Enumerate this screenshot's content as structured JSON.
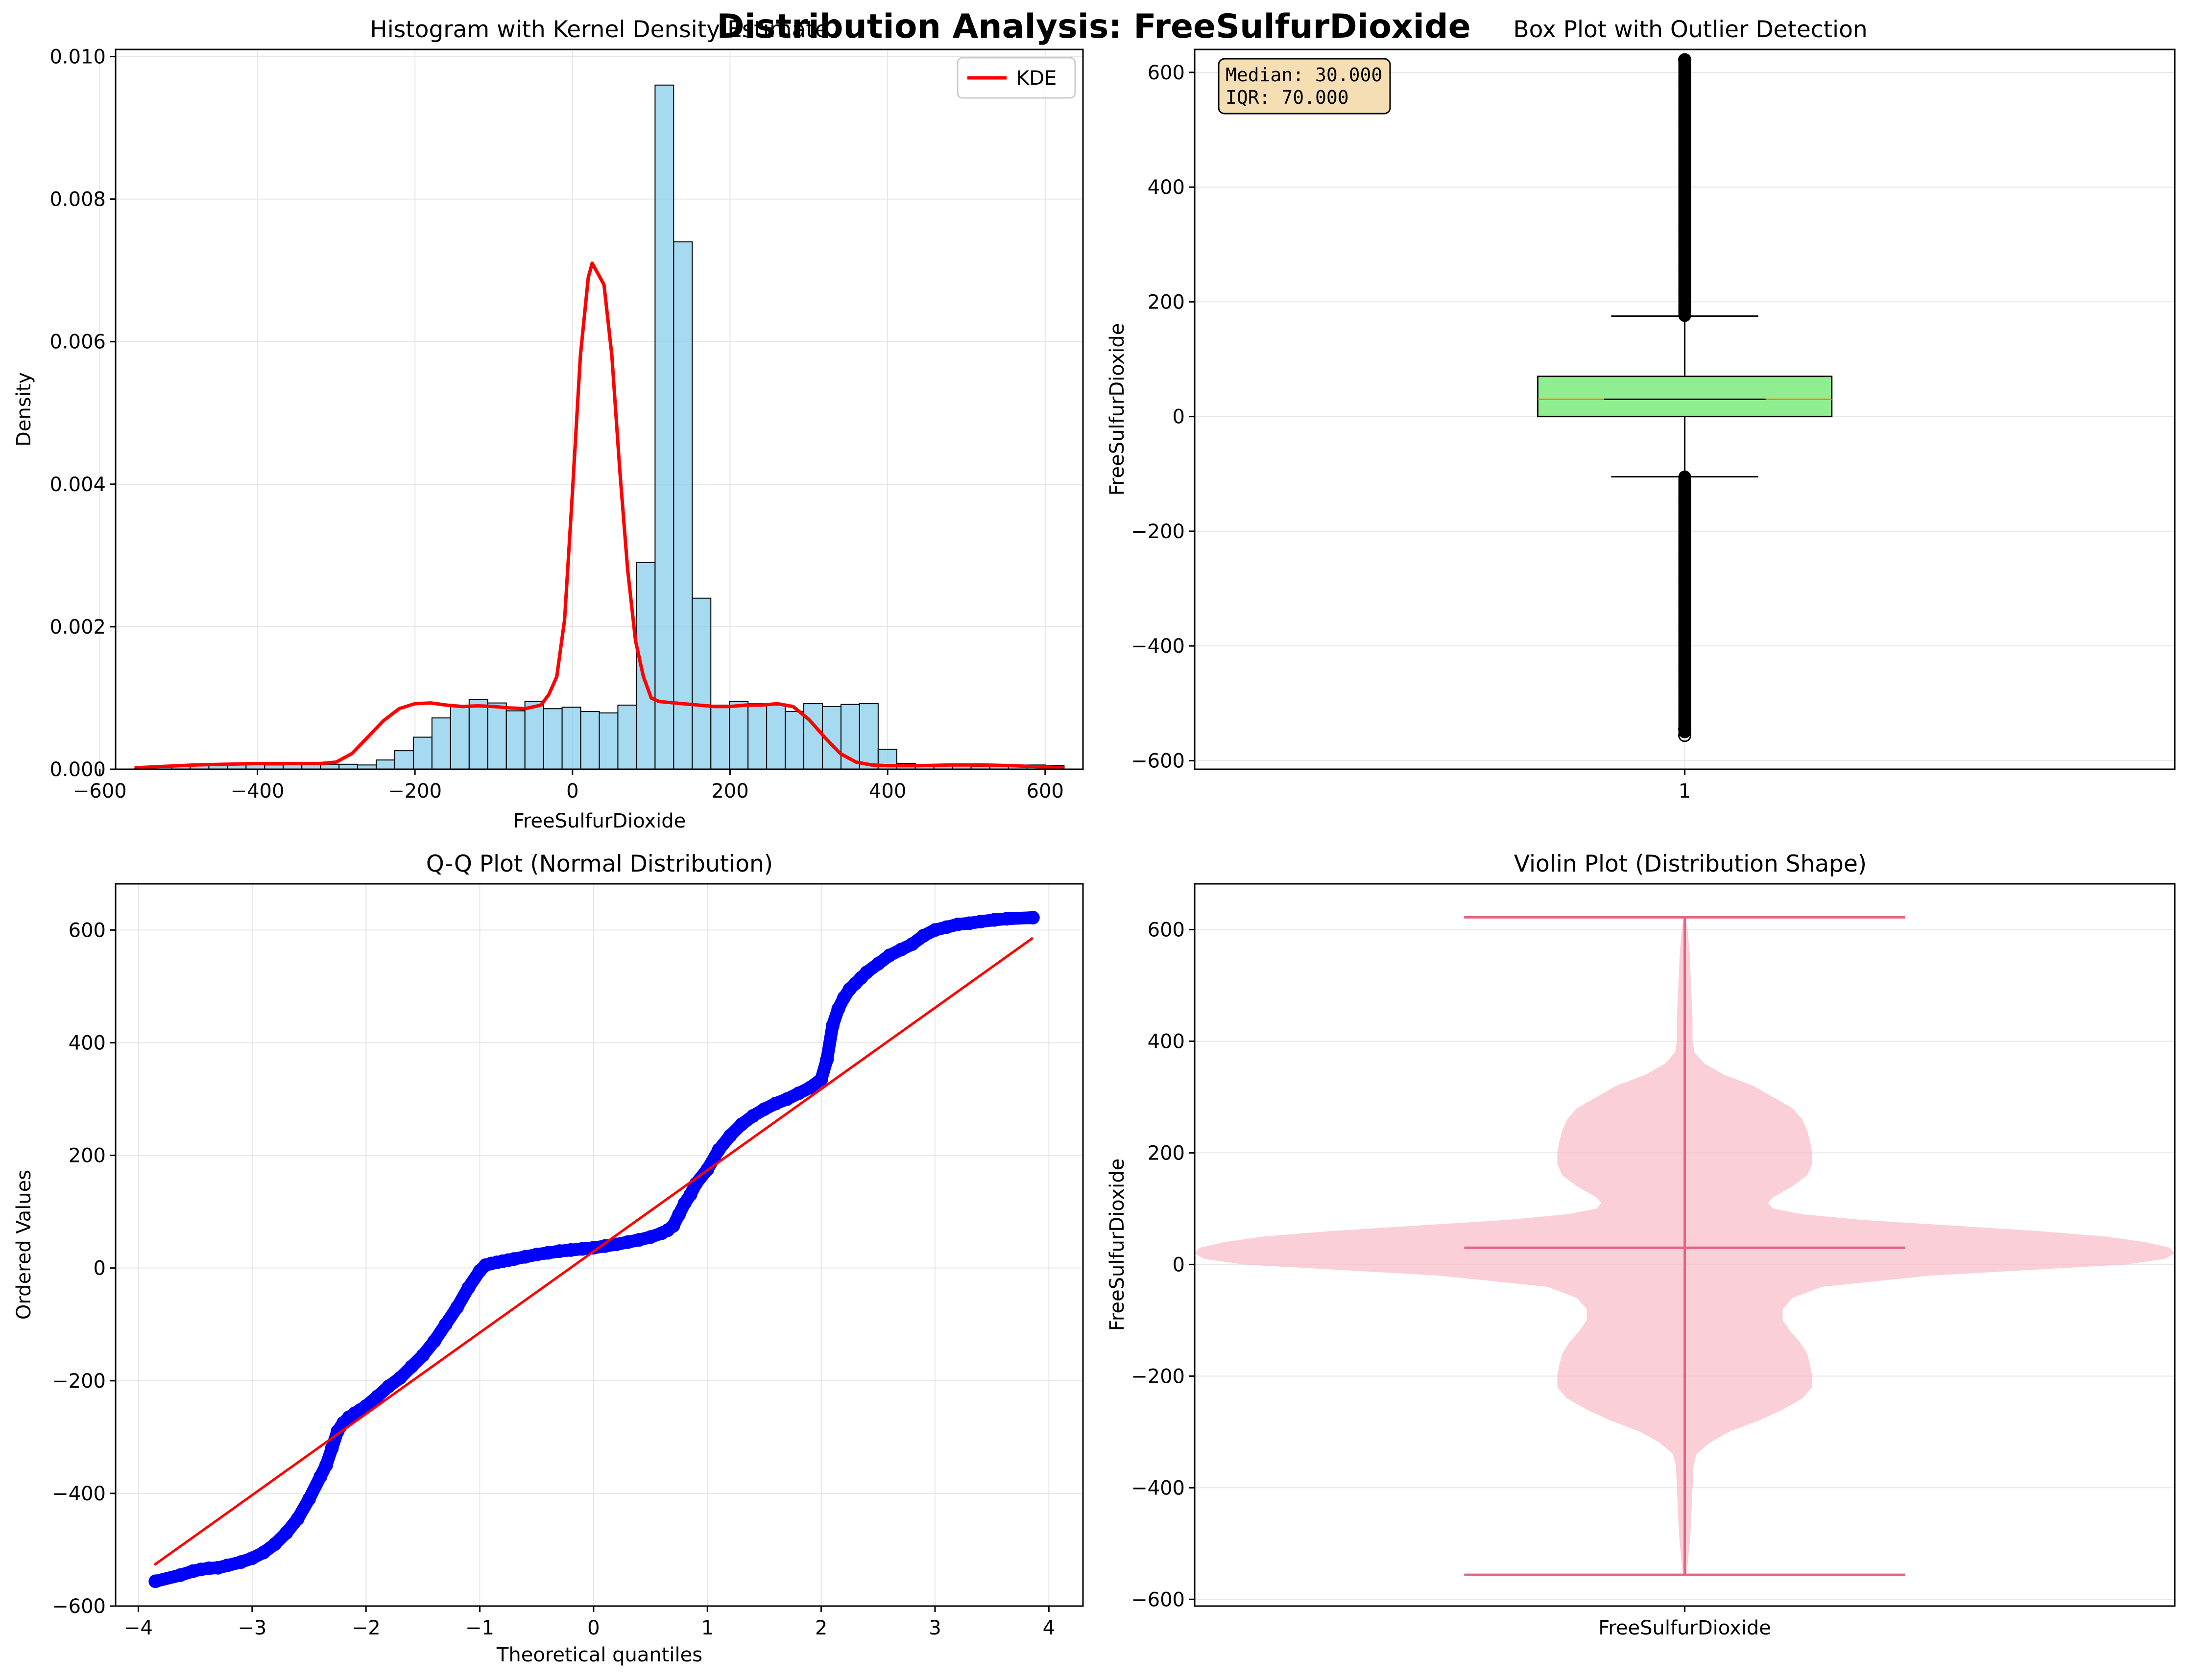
{
  "figure": {
    "title": "Distribution Analysis: FreeSulfurDioxide",
    "bg_color": "#ffffff",
    "grid_color": "#e6e6e6"
  },
  "chart_data": [
    {
      "id": "hist",
      "type": "bar",
      "title": "Histogram with Kernel Density Estimate",
      "xlabel": "FreeSulfurDioxide",
      "ylabel": "Density",
      "xlim": [
        -580,
        648
      ],
      "ylim": [
        0,
        0.0101
      ],
      "xticks": [
        -600,
        -400,
        -200,
        0,
        200,
        400,
        600
      ],
      "xtick_labels": [
        "−600",
        "−400",
        "−200",
        "0",
        "200",
        "400",
        "600"
      ],
      "yticks": [
        0,
        0.002,
        0.004,
        0.006,
        0.008,
        0.01
      ],
      "ytick_labels": [
        "0.000",
        "0.002",
        "0.004",
        "0.006",
        "0.008",
        "0.010"
      ],
      "grid": true,
      "bar_color": "#87ceeb",
      "bar_edge": "#000000",
      "bins": {
        "start": -556,
        "width": 23.6,
        "densities": [
          1e-05,
          3e-05,
          4e-05,
          5e-05,
          6e-05,
          6e-05,
          7e-05,
          6e-05,
          9e-05,
          8e-05,
          7e-05,
          7e-05,
          6e-05,
          0.00013,
          0.00026,
          0.00045,
          0.00072,
          0.00088,
          0.00098,
          0.00093,
          0.00082,
          0.00095,
          0.00085,
          0.00087,
          0.00081,
          0.00079,
          0.0009,
          0.0029,
          0.0096,
          0.0074,
          0.0024,
          0.0009,
          0.00095,
          0.00092,
          0.0009,
          0.00081,
          0.00092,
          0.00088,
          0.00091,
          0.00092,
          0.00028,
          8e-05,
          6e-05,
          5e-05,
          5e-05,
          4e-05,
          4e-05,
          5e-05,
          6e-05,
          5e-05
        ]
      },
      "kde": {
        "name": "KDE",
        "color": "#ff0000",
        "x": [
          -556,
          -520,
          -480,
          -440,
          -400,
          -360,
          -320,
          -300,
          -280,
          -260,
          -240,
          -220,
          -200,
          -180,
          -160,
          -140,
          -120,
          -100,
          -80,
          -60,
          -40,
          -30,
          -20,
          -10,
          0,
          10,
          20,
          25,
          30,
          40,
          50,
          60,
          70,
          80,
          90,
          100,
          110,
          120,
          140,
          160,
          180,
          200,
          220,
          240,
          260,
          280,
          300,
          320,
          340,
          360,
          380,
          400,
          440,
          480,
          520,
          560,
          600,
          624
        ],
        "y": [
          2e-05,
          4e-05,
          6e-05,
          7e-05,
          8e-05,
          8e-05,
          8e-05,
          0.0001,
          0.00022,
          0.00045,
          0.00068,
          0.00085,
          0.00092,
          0.00093,
          0.0009,
          0.00088,
          0.00089,
          0.00088,
          0.00086,
          0.00085,
          0.0009,
          0.00105,
          0.0013,
          0.0021,
          0.0039,
          0.0058,
          0.0069,
          0.0071,
          0.007,
          0.0068,
          0.0058,
          0.0042,
          0.0028,
          0.0018,
          0.0013,
          0.001,
          0.00095,
          0.00094,
          0.00092,
          0.0009,
          0.00088,
          0.00088,
          0.0009,
          0.0009,
          0.00092,
          0.00088,
          0.0007,
          0.00045,
          0.00022,
          0.0001,
          6e-05,
          5e-05,
          5e-05,
          6e-05,
          6e-05,
          5e-05,
          3e-05,
          2e-05
        ]
      },
      "legend": {
        "position": "upper-right",
        "label": "KDE"
      }
    },
    {
      "id": "box",
      "type": "box",
      "title": "Box Plot with Outlier Detection",
      "ylabel": "FreeSulfurDioxide",
      "xlim": [
        0.5,
        1.5
      ],
      "ylim": [
        -615,
        640
      ],
      "yticks": [
        -600,
        -400,
        -200,
        0,
        200,
        400,
        600
      ],
      "ytick_labels": [
        "−600",
        "−400",
        "−200",
        "0",
        "200",
        "400",
        "600"
      ],
      "xticks": [
        1
      ],
      "xtick_labels": [
        "1"
      ],
      "grid": true,
      "box_color": "#90ee90",
      "median_color": "#ff7f0e",
      "q1": 0,
      "median": 30,
      "q3": 70,
      "whisker_low": -105,
      "whisker_high": 175,
      "outlier_low_range": [
        -550,
        -106
      ],
      "outlier_high_range": [
        176,
        622
      ],
      "outlier_extremes": [
        -556,
        -545,
        622
      ],
      "stats_box": {
        "lines": [
          "Median: 30.000",
          "IQR: 70.000"
        ],
        "bg": "#f5deb3"
      }
    },
    {
      "id": "qq",
      "type": "scatter",
      "title": "Q-Q Plot (Normal Distribution)",
      "xlabel": "Theoretical quantiles",
      "ylabel": "Ordered Values",
      "xlim": [
        -4.2,
        4.3
      ],
      "ylim": [
        -600,
        682
      ],
      "xticks": [
        -4,
        -3,
        -2,
        -1,
        0,
        1,
        2,
        3,
        4
      ],
      "xtick_labels": [
        "−4",
        "−3",
        "−2",
        "−1",
        "0",
        "1",
        "2",
        "3",
        "4"
      ],
      "yticks": [
        -600,
        -400,
        -200,
        0,
        200,
        400,
        600
      ],
      "ytick_labels": [
        "−600",
        "−400",
        "−200",
        "0",
        "200",
        "400",
        "600"
      ],
      "grid": true,
      "point_color": "#0000ff",
      "line_color": "#ff0000",
      "points_x": [
        -3.85,
        -3.63,
        -3.52,
        -3.45,
        -3.38,
        -3.3,
        -3.22,
        -3.1,
        -3.0,
        -2.9,
        -2.8,
        -2.7,
        -2.6,
        -2.5,
        -2.4,
        -2.35,
        -2.3,
        -2.25,
        -2.2,
        -2.15,
        -2.1,
        -2.05,
        -2.0,
        -1.9,
        -1.8,
        -1.7,
        -1.6,
        -1.5,
        -1.4,
        -1.3,
        -1.2,
        -1.1,
        -1.0,
        -0.95,
        -0.9,
        -0.85,
        -0.8,
        -0.75,
        -0.7,
        -0.6,
        -0.5,
        -0.4,
        -0.3,
        -0.2,
        -0.1,
        0.0,
        0.1,
        0.2,
        0.3,
        0.4,
        0.5,
        0.6,
        0.65,
        0.7,
        0.75,
        0.8,
        0.85,
        0.9,
        1.0,
        1.1,
        1.2,
        1.3,
        1.4,
        1.5,
        1.6,
        1.7,
        1.8,
        1.9,
        2.0,
        2.05,
        2.1,
        2.15,
        2.2,
        2.25,
        2.3,
        2.35,
        2.4,
        2.5,
        2.6,
        2.7,
        2.8,
        2.9,
        3.0,
        3.1,
        3.2,
        3.3,
        3.4,
        3.52,
        3.63,
        3.86
      ],
      "points_y": [
        -556,
        -545,
        -538,
        -535,
        -533,
        -532,
        -528,
        -522,
        -515,
        -505,
        -490,
        -470,
        -445,
        -410,
        -370,
        -350,
        -320,
        -290,
        -275,
        -265,
        -258,
        -252,
        -245,
        -228,
        -210,
        -195,
        -175,
        -155,
        -130,
        -100,
        -70,
        -35,
        -5,
        5,
        8,
        10,
        12,
        14,
        16,
        20,
        24,
        27,
        30,
        32,
        34,
        36,
        39,
        42,
        46,
        50,
        55,
        62,
        67,
        75,
        95,
        115,
        130,
        150,
        175,
        210,
        235,
        255,
        270,
        282,
        292,
        300,
        310,
        320,
        335,
        370,
        430,
        460,
        480,
        495,
        505,
        515,
        525,
        540,
        555,
        565,
        575,
        590,
        600,
        605,
        610,
        612,
        615,
        618,
        620,
        622
      ],
      "fit_line": [
        [
          -3.86,
          -527
        ],
        [
          3.86,
          586
        ]
      ]
    },
    {
      "id": "violin",
      "type": "violin",
      "title": "Violin Plot (Distribution Shape)",
      "ylabel": "FreeSulfurDioxide",
      "xlim": [
        0.5,
        1.5
      ],
      "ylim": [
        -612,
        682
      ],
      "yticks": [
        -600,
        -400,
        -200,
        0,
        200,
        400,
        600
      ],
      "ytick_labels": [
        "−600",
        "−400",
        "−200",
        "0",
        "200",
        "400",
        "600"
      ],
      "xtick_labels": [
        "FreeSulfurDioxide"
      ],
      "grid": true,
      "fill_color": "#f8bac7",
      "line_color": "#e8647e",
      "min": -556,
      "max": 622,
      "median": 30,
      "profile_y": [
        -556,
        -520,
        -480,
        -440,
        -400,
        -360,
        -340,
        -320,
        -300,
        -280,
        -260,
        -240,
        -220,
        -200,
        -180,
        -160,
        -140,
        -120,
        -100,
        -80,
        -60,
        -40,
        -20,
        0,
        10,
        20,
        30,
        40,
        50,
        60,
        70,
        80,
        90,
        100,
        110,
        120,
        140,
        160,
        180,
        200,
        220,
        240,
        260,
        280,
        300,
        320,
        340,
        360,
        380,
        400,
        440,
        480,
        520,
        560,
        600,
        622
      ],
      "profile_w": [
        0.002,
        0.004,
        0.006,
        0.007,
        0.008,
        0.009,
        0.012,
        0.025,
        0.045,
        0.075,
        0.1,
        0.12,
        0.13,
        0.13,
        0.128,
        0.125,
        0.118,
        0.108,
        0.1,
        0.1,
        0.11,
        0.14,
        0.25,
        0.45,
        0.49,
        0.5,
        0.495,
        0.47,
        0.43,
        0.36,
        0.27,
        0.18,
        0.12,
        0.09,
        0.085,
        0.09,
        0.11,
        0.125,
        0.13,
        0.13,
        0.128,
        0.125,
        0.12,
        0.11,
        0.09,
        0.07,
        0.04,
        0.02,
        0.01,
        0.008,
        0.008,
        0.007,
        0.006,
        0.005,
        0.003,
        0.001
      ]
    }
  ]
}
